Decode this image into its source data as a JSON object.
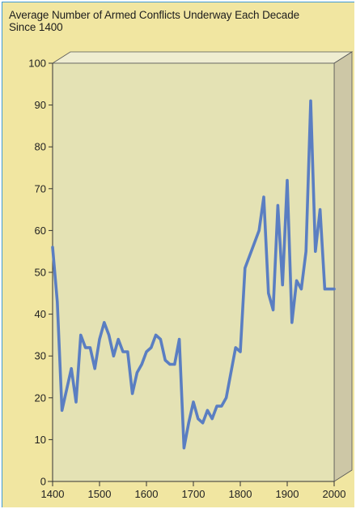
{
  "title_lines": [
    "Average Number of Armed Conflicts Underway Each Decade",
    "Since 1400"
  ],
  "colors": {
    "background": "#f1e6a1",
    "plot_face": "#e4e2b4",
    "side_face": "#cdc7a6",
    "top_face": "#efedd1",
    "line": "#5a7ec2",
    "frame_border": "#3f9bd6"
  },
  "chart_data": {
    "type": "line",
    "title": "Average Number of Armed Conflicts Underway Each Decade Since 1400",
    "xlabel": "",
    "ylabel": "",
    "xlim": [
      1400,
      2000
    ],
    "ylim": [
      0,
      100
    ],
    "xticks": [
      1400,
      1500,
      1600,
      1700,
      1800,
      1900,
      2000
    ],
    "yticks": [
      0,
      10,
      20,
      30,
      40,
      50,
      60,
      70,
      80,
      90,
      100
    ],
    "grid": false,
    "series": [
      {
        "name": "",
        "x": [
          1400,
          1410,
          1420,
          1430,
          1440,
          1450,
          1460,
          1470,
          1480,
          1490,
          1500,
          1510,
          1520,
          1530,
          1540,
          1550,
          1560,
          1570,
          1580,
          1590,
          1600,
          1610,
          1620,
          1630,
          1640,
          1650,
          1660,
          1670,
          1680,
          1690,
          1700,
          1710,
          1720,
          1730,
          1740,
          1750,
          1760,
          1770,
          1780,
          1790,
          1800,
          1810,
          1820,
          1830,
          1840,
          1850,
          1860,
          1870,
          1880,
          1890,
          1900,
          1910,
          1920,
          1930,
          1940,
          1950,
          1960,
          1970,
          1980,
          1990,
          2000
        ],
        "values": [
          56,
          43,
          17,
          22,
          27,
          19,
          35,
          32,
          32,
          27,
          34,
          38,
          35,
          30,
          34,
          31,
          31,
          21,
          26,
          28,
          31,
          32,
          35,
          34,
          29,
          28,
          28,
          34,
          8,
          14,
          19,
          15,
          14,
          17,
          15,
          18,
          18,
          20,
          26,
          32,
          31,
          51,
          54,
          57,
          60,
          68,
          45,
          41,
          66,
          47,
          72,
          38,
          48,
          46,
          55,
          91,
          55,
          65,
          46,
          46,
          46
        ]
      }
    ]
  }
}
